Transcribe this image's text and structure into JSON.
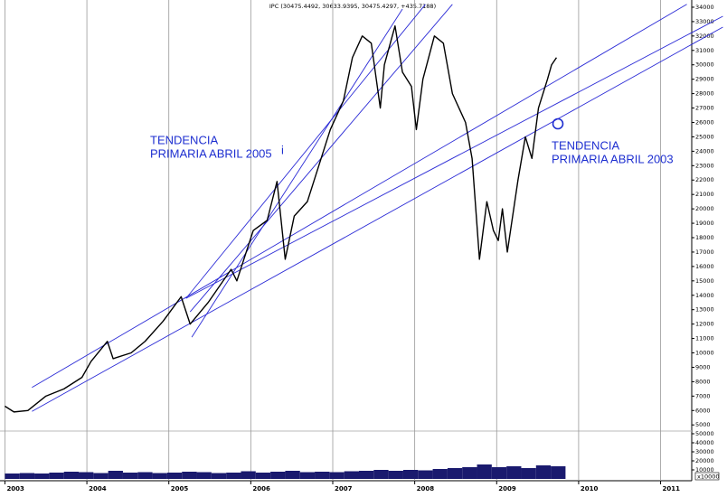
{
  "chart_data": {
    "type": "line",
    "title": "IPC (30475.4492, 30633.9395, 30475.4297, +435.7188)",
    "xlim": [
      2002.94,
      2011.38
    ],
    "xticks": [
      2003,
      2004,
      2005,
      2006,
      2007,
      2008,
      2009,
      2010,
      2011
    ],
    "ylim": [
      4700,
      34500
    ],
    "yticks": [
      5000,
      6000,
      7000,
      8000,
      9000,
      10000,
      11000,
      12000,
      13000,
      14000,
      15000,
      16000,
      17000,
      18000,
      19000,
      20000,
      21000,
      22000,
      23000,
      24000,
      25000,
      26000,
      27000,
      28000,
      29000,
      30000,
      31000,
      32000,
      33000,
      34000
    ],
    "grid": true,
    "series": [
      {
        "name": "IPC",
        "color": "#000000",
        "x": [
          2003.0,
          2003.11,
          2003.28,
          2003.5,
          2003.72,
          2003.94,
          2004.05,
          2004.25,
          2004.32,
          2004.54,
          2004.71,
          2004.93,
          2005.15,
          2005.26,
          2005.48,
          2005.76,
          2005.83,
          2006.03,
          2006.2,
          2006.32,
          2006.42,
          2006.53,
          2006.69,
          2006.83,
          2006.97,
          2007.13,
          2007.24,
          2007.36,
          2007.47,
          2007.58,
          2007.63,
          2007.76,
          2007.85,
          2007.96,
          2008.02,
          2008.1,
          2008.24,
          2008.35,
          2008.46,
          2008.62,
          2008.7,
          2008.79,
          2008.88,
          2008.96,
          2009.02,
          2009.07,
          2009.13,
          2009.26,
          2009.35,
          2009.43,
          2009.51,
          2009.62,
          2009.67,
          2009.73
        ],
        "values": [
          6300,
          5900,
          6000,
          7000,
          7500,
          8300,
          9400,
          10800,
          9600,
          10000,
          10800,
          12200,
          13900,
          12000,
          13500,
          15800,
          15000,
          18500,
          19200,
          21900,
          16500,
          19500,
          20500,
          23000,
          25500,
          27500,
          30500,
          32000,
          31500,
          27000,
          30000,
          32700,
          29500,
          28500,
          25500,
          29000,
          32000,
          31500,
          28000,
          26000,
          23500,
          16500,
          20500,
          18500,
          17800,
          20000,
          17000,
          22000,
          25000,
          23500,
          27000,
          29000,
          30000,
          30500
        ]
      }
    ],
    "trend_lines": [
      {
        "color": "#2b2bd6",
        "x": [
          2003.33,
          2011.32
        ],
        "y": [
          7600,
          34200
        ]
      },
      {
        "color": "#2b2bd6",
        "x": [
          2003.33,
          2011.76
        ],
        "y": [
          5940,
          32620
        ]
      },
      {
        "color": "#2b2bd6",
        "x": [
          2005.21,
          2011.76
        ],
        "y": [
          13790,
          33370
        ]
      },
      {
        "color": "#2b2bd6",
        "x": [
          2005.21,
          2008.13
        ],
        "y": [
          13790,
          34200
        ]
      },
      {
        "color": "#2b2bd6",
        "x": [
          2005.26,
          2008.46
        ],
        "y": [
          12850,
          34200
        ]
      },
      {
        "color": "#2b2bd6",
        "x": [
          2005.28,
          2007.85
        ],
        "y": [
          11090,
          33870
        ]
      }
    ],
    "annotations": [
      [
        "TENDENCIA",
        "PRIMARIA ABRIL 2005"
      ],
      [
        "i"
      ],
      [
        "TENDENCIA",
        "PRIMARIA ABRIL 2003"
      ]
    ],
    "annotation_color": "#1e2fd0",
    "volume": {
      "color": "#1a1a6e",
      "unit_label": "x10000",
      "ylim": [
        0,
        52000
      ],
      "yticks": [
        10000,
        20000,
        30000,
        40000,
        50000
      ],
      "x": [
        2003.0,
        2003.18,
        2003.36,
        2003.54,
        2003.72,
        2003.9,
        2004.08,
        2004.26,
        2004.44,
        2004.62,
        2004.8,
        2004.98,
        2005.16,
        2005.34,
        2005.52,
        2005.7,
        2005.88,
        2006.06,
        2006.24,
        2006.42,
        2006.6,
        2006.78,
        2006.96,
        2007.14,
        2007.32,
        2007.5,
        2007.68,
        2007.86,
        2008.04,
        2008.22,
        2008.4,
        2008.58,
        2008.76,
        2008.94,
        2009.12,
        2009.3,
        2009.48,
        2009.66
      ],
      "values": [
        6000,
        6500,
        6000,
        7000,
        8000,
        7500,
        6500,
        9000,
        7000,
        7500,
        6500,
        7000,
        8000,
        7500,
        6500,
        7000,
        8500,
        7000,
        8000,
        9000,
        7500,
        8000,
        7500,
        8500,
        9000,
        10000,
        9000,
        10000,
        9500,
        11000,
        12000,
        13000,
        16000,
        13000,
        14000,
        12000,
        15000,
        14000
      ]
    }
  }
}
